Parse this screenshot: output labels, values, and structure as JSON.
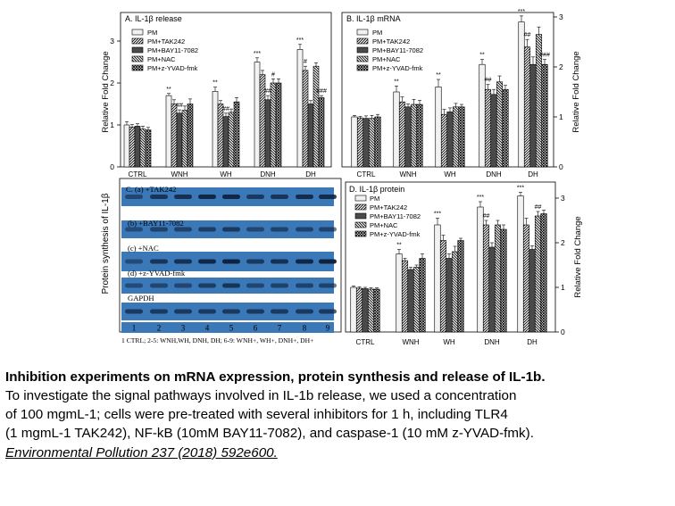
{
  "figure": {
    "categories": [
      "CTRL",
      "WNH",
      "WH",
      "DNH",
      "DH"
    ],
    "legend_labels": [
      "PM",
      "PM+TAK242",
      "PM+BAY11-7082",
      "PM+NAC",
      "PM+z-YVAD-fmk"
    ],
    "ylabel": "Relative Fold Change",
    "blot_ylabel": "Protein synthesis of IL-1β"
  },
  "chart_data": [
    {
      "type": "bar",
      "title": "A. IL-1β release",
      "ylabel": "Relative Fold Change",
      "ylim": [
        0,
        3
      ],
      "yticks": [
        0,
        1,
        2,
        3
      ],
      "yaxis_side": "left",
      "categories": [
        "CTRL",
        "WNH",
        "WH",
        "DNH",
        "DH"
      ],
      "series": [
        {
          "name": "PM",
          "values": [
            1.0,
            1.7,
            1.8,
            2.5,
            2.8
          ],
          "errors": [
            0.08,
            0.05,
            0.1,
            0.1,
            0.12
          ]
        },
        {
          "name": "PM+TAK242",
          "values": [
            0.95,
            1.5,
            1.5,
            2.2,
            2.3
          ],
          "errors": [
            0.06,
            0.1,
            0.08,
            0.1,
            0.1
          ]
        },
        {
          "name": "PM+BAY11-7082",
          "values": [
            0.97,
            1.28,
            1.2,
            1.6,
            1.5
          ],
          "errors": [
            0.06,
            0.08,
            0.08,
            0.1,
            0.08
          ]
        },
        {
          "name": "PM+NAC",
          "values": [
            0.9,
            1.35,
            1.3,
            2.0,
            2.4
          ],
          "errors": [
            0.07,
            0.1,
            0.08,
            0.1,
            0.08
          ]
        },
        {
          "name": "PM+z-YVAD-fmk",
          "values": [
            0.88,
            1.5,
            1.55,
            2.0,
            1.65
          ],
          "errors": [
            0.06,
            0.12,
            0.1,
            0.1,
            0.05
          ]
        }
      ],
      "annotations": [
        {
          "text": "**",
          "category": "WNH",
          "series": "PM"
        },
        {
          "text": "**",
          "category": "WH",
          "series": "PM"
        },
        {
          "text": "***",
          "category": "DNH",
          "series": "PM"
        },
        {
          "text": "***",
          "category": "DH",
          "series": "PM"
        },
        {
          "text": "##",
          "category": "WNH",
          "series": "PM+BAY11-7082"
        },
        {
          "text": "##",
          "category": "WH",
          "series": "PM+BAY11-7082"
        },
        {
          "text": "##",
          "category": "DNH",
          "series": "PM+BAY11-7082"
        },
        {
          "text": "#",
          "category": "DNH",
          "series": "PM+NAC"
        },
        {
          "text": "#",
          "category": "DH",
          "series": "PM+TAK242"
        },
        {
          "text": "###",
          "category": "DH",
          "series": "PM+z-YVAD-fmk"
        }
      ]
    },
    {
      "type": "bar",
      "title": "B. IL-1β mRNA",
      "ylabel": "Relative Fold Change",
      "ylim": [
        0,
        3
      ],
      "yticks": [
        0,
        1,
        2,
        3
      ],
      "yaxis_side": "right",
      "categories": [
        "CTRL",
        "WNH",
        "WH",
        "DNH",
        "DH"
      ],
      "series": [
        {
          "name": "PM",
          "values": [
            1.0,
            1.5,
            1.6,
            2.05,
            2.9
          ],
          "errors": [
            0.03,
            0.12,
            0.15,
            0.1,
            0.12
          ]
        },
        {
          "name": "PM+TAK242",
          "values": [
            0.98,
            1.3,
            1.05,
            1.55,
            2.4
          ],
          "errors": [
            0.03,
            0.1,
            0.1,
            0.1,
            0.15
          ]
        },
        {
          "name": "PM+BAY11-7082",
          "values": [
            0.97,
            1.2,
            1.1,
            1.45,
            2.05
          ],
          "errors": [
            0.05,
            0.06,
            0.08,
            0.1,
            0.15
          ]
        },
        {
          "name": "PM+NAC",
          "values": [
            0.97,
            1.25,
            1.2,
            1.7,
            2.65
          ],
          "errors": [
            0.06,
            0.1,
            0.07,
            0.12,
            0.15
          ]
        },
        {
          "name": "PM+z-YVAD-fmk",
          "values": [
            1.0,
            1.25,
            1.2,
            1.55,
            2.05
          ],
          "errors": [
            0.05,
            0.08,
            0.05,
            0.08,
            0.1
          ]
        }
      ],
      "annotations": [
        {
          "text": "**",
          "category": "WNH",
          "series": "PM"
        },
        {
          "text": "**",
          "category": "WH",
          "series": "PM"
        },
        {
          "text": "**",
          "category": "DNH",
          "series": "PM"
        },
        {
          "text": "***",
          "category": "DH",
          "series": "PM"
        },
        {
          "text": "##",
          "category": "DNH",
          "series": "PM+TAK242"
        },
        {
          "text": "##",
          "category": "DH",
          "series": "PM+TAK242"
        },
        {
          "text": "###",
          "category": "DH",
          "series": "PM+z-YVAD-fmk"
        }
      ]
    },
    {
      "type": "bar",
      "title": "D. IL-1β protein",
      "ylabel": "Relative Fold Change",
      "ylim": [
        0,
        3
      ],
      "yticks": [
        0,
        1,
        2,
        3
      ],
      "yaxis_side": "right",
      "categories": [
        "CTRL",
        "WNH",
        "WH",
        "DNH",
        "DH"
      ],
      "series": [
        {
          "name": "PM",
          "values": [
            1.0,
            1.75,
            2.4,
            2.8,
            3.05
          ],
          "errors": [
            0.03,
            0.1,
            0.15,
            0.12,
            0.08
          ]
        },
        {
          "name": "PM+TAK242",
          "values": [
            0.98,
            1.6,
            2.05,
            2.4,
            2.4
          ],
          "errors": [
            0.03,
            0.05,
            0.12,
            0.1,
            0.15
          ]
        },
        {
          "name": "PM+BAY11-7082",
          "values": [
            0.97,
            1.4,
            1.65,
            1.9,
            1.85
          ],
          "errors": [
            0.03,
            0.05,
            0.1,
            0.1,
            0.08
          ]
        },
        {
          "name": "PM+NAC",
          "values": [
            0.96,
            1.45,
            1.8,
            2.4,
            2.6
          ],
          "errors": [
            0.03,
            0.05,
            0.12,
            0.1,
            0.1
          ]
        },
        {
          "name": "PM+z-YVAD-fmk",
          "values": [
            0.96,
            1.65,
            2.05,
            2.3,
            2.65
          ],
          "errors": [
            0.03,
            0.1,
            0.05,
            0.1,
            0.08
          ]
        }
      ],
      "annotations": [
        {
          "text": "**",
          "category": "WNH",
          "series": "PM"
        },
        {
          "text": "***",
          "category": "WH",
          "series": "PM"
        },
        {
          "text": "***",
          "category": "DNH",
          "series": "PM"
        },
        {
          "text": "***",
          "category": "DH",
          "series": "PM"
        },
        {
          "text": "##",
          "category": "DNH",
          "series": "PM+TAK242"
        },
        {
          "text": "##",
          "category": "DH",
          "series": "PM+NAC"
        }
      ]
    }
  ],
  "blot": {
    "title": "C. (a) +TAK242",
    "rows": [
      {
        "label": "C. (a) +TAK242",
        "intensities": [
          0.55,
          0.75,
          0.8,
          0.9,
          0.9,
          0.7,
          0.75,
          0.85,
          0.85
        ]
      },
      {
        "label": "(b) +BAY11-7082",
        "intensities": [
          0.5,
          0.6,
          0.6,
          0.65,
          0.7,
          0.55,
          0.6,
          0.6,
          0.6
        ]
      },
      {
        "label": "(c) +NAC",
        "intensities": [
          0.5,
          0.75,
          0.8,
          0.9,
          0.95,
          0.7,
          0.8,
          0.9,
          0.95
        ]
      },
      {
        "label": "(d) +z-YVAD-fmk",
        "intensities": [
          0.5,
          0.55,
          0.55,
          0.65,
          0.75,
          0.55,
          0.6,
          0.6,
          0.6
        ]
      },
      {
        "label": "GAPDH",
        "intensities": [
          0.7,
          0.7,
          0.7,
          0.7,
          0.7,
          0.7,
          0.7,
          0.7,
          0.7
        ]
      }
    ],
    "lane_numbers": [
      "1",
      "2",
      "3",
      "4",
      "5",
      "6",
      "7",
      "8",
      "9"
    ],
    "lane_note": "1 CTRL; 2-5: WNH,WH, DNH, DH; 6-9: WNH+, WH+, DNH+, DH+"
  },
  "caption": {
    "title": "Inhibition experiments on mRNA expression, protein synthesis and release of IL-1b.",
    "lines": [
      "To investigate the signal pathways involved in IL-1b release, we used a concentration",
      "of 100 mgmL-1; cells were pre-treated with several inhibitors for 1 h, including TLR4",
      "(1 mgmL-1 TAK242), NF-kB (10mM BAY11-7082), and caspase-1 (10 mM z-YVAD-fmk)."
    ],
    "reference": "Environmental Pollution 237 (2018) 592e600."
  },
  "colors": {
    "blot_background": "#3a78b8",
    "band": "#0d1e38",
    "axis": "#000000"
  }
}
